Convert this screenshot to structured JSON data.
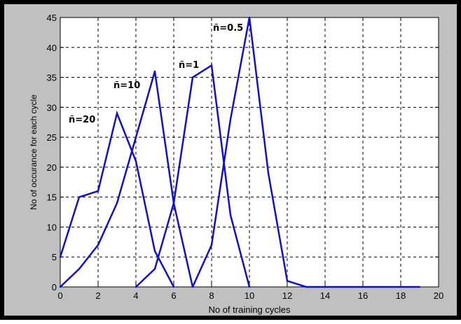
{
  "chart_data": {
    "type": "line",
    "title": "",
    "xlabel": "No of training cycles",
    "ylabel": "No of occurance for each cycle",
    "xlim": [
      0,
      20
    ],
    "ylim": [
      0,
      45
    ],
    "xticks": [
      0,
      2,
      4,
      6,
      8,
      10,
      12,
      14,
      16,
      18,
      20
    ],
    "yticks": [
      0,
      5,
      10,
      15,
      20,
      25,
      30,
      35,
      40,
      45
    ],
    "grid": true,
    "line_color": "#1010cc",
    "series": [
      {
        "name": "ñ=20",
        "x": [
          0,
          1,
          2,
          3,
          4,
          5,
          6
        ],
        "values": [
          5,
          15,
          16,
          29,
          21,
          6,
          0
        ]
      },
      {
        "name": "ñ=10",
        "x": [
          0,
          1,
          2,
          3,
          4,
          5,
          6,
          7
        ],
        "values": [
          0,
          3,
          7,
          14,
          25,
          36,
          14,
          0
        ]
      },
      {
        "name": "ñ=1",
        "x": [
          4,
          5,
          6,
          7,
          8,
          9,
          10
        ],
        "values": [
          0,
          3,
          14,
          35,
          37,
          12,
          0
        ]
      },
      {
        "name": "ñ=0.5",
        "x": [
          7,
          8,
          9,
          10,
          11,
          12,
          13,
          14,
          15,
          16,
          17,
          18,
          19
        ],
        "values": [
          0,
          7,
          28,
          45,
          19,
          1,
          0,
          0,
          0,
          0,
          0,
          0,
          0
        ]
      }
    ]
  }
}
